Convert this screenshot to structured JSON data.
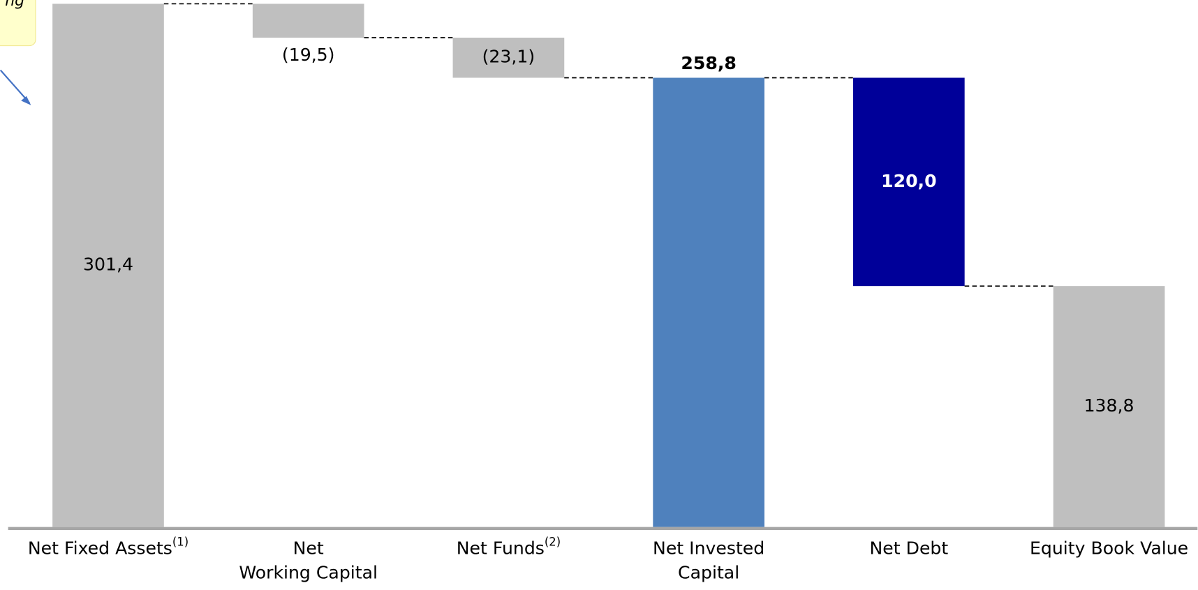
{
  "chart_data": {
    "type": "waterfall",
    "annotation": "ng",
    "categories": [
      "Net Fixed Assets",
      "Net\nWorking Capital",
      "Net Funds",
      "Net Invested\nCapital",
      "Net Debt",
      "Equity Book Value"
    ],
    "category_footnotes": [
      "(1)",
      null,
      "(2)",
      null,
      null,
      null
    ],
    "measure": [
      "absolute",
      "relative",
      "relative",
      "total",
      "relative",
      "total"
    ],
    "values": [
      301.4,
      -19.5,
      -23.1,
      258.8,
      -120.0,
      138.8
    ],
    "value_labels": [
      "301,4",
      "(19,5)",
      "(23,1)",
      "258,8",
      "120,0",
      "138,8"
    ],
    "colors": [
      "#bfbfbf",
      "#bfbfbf",
      "#bfbfbf",
      "#4f81bd",
      "#000099",
      "#bfbfbf"
    ],
    "ylim": [
      0,
      301.4
    ]
  }
}
